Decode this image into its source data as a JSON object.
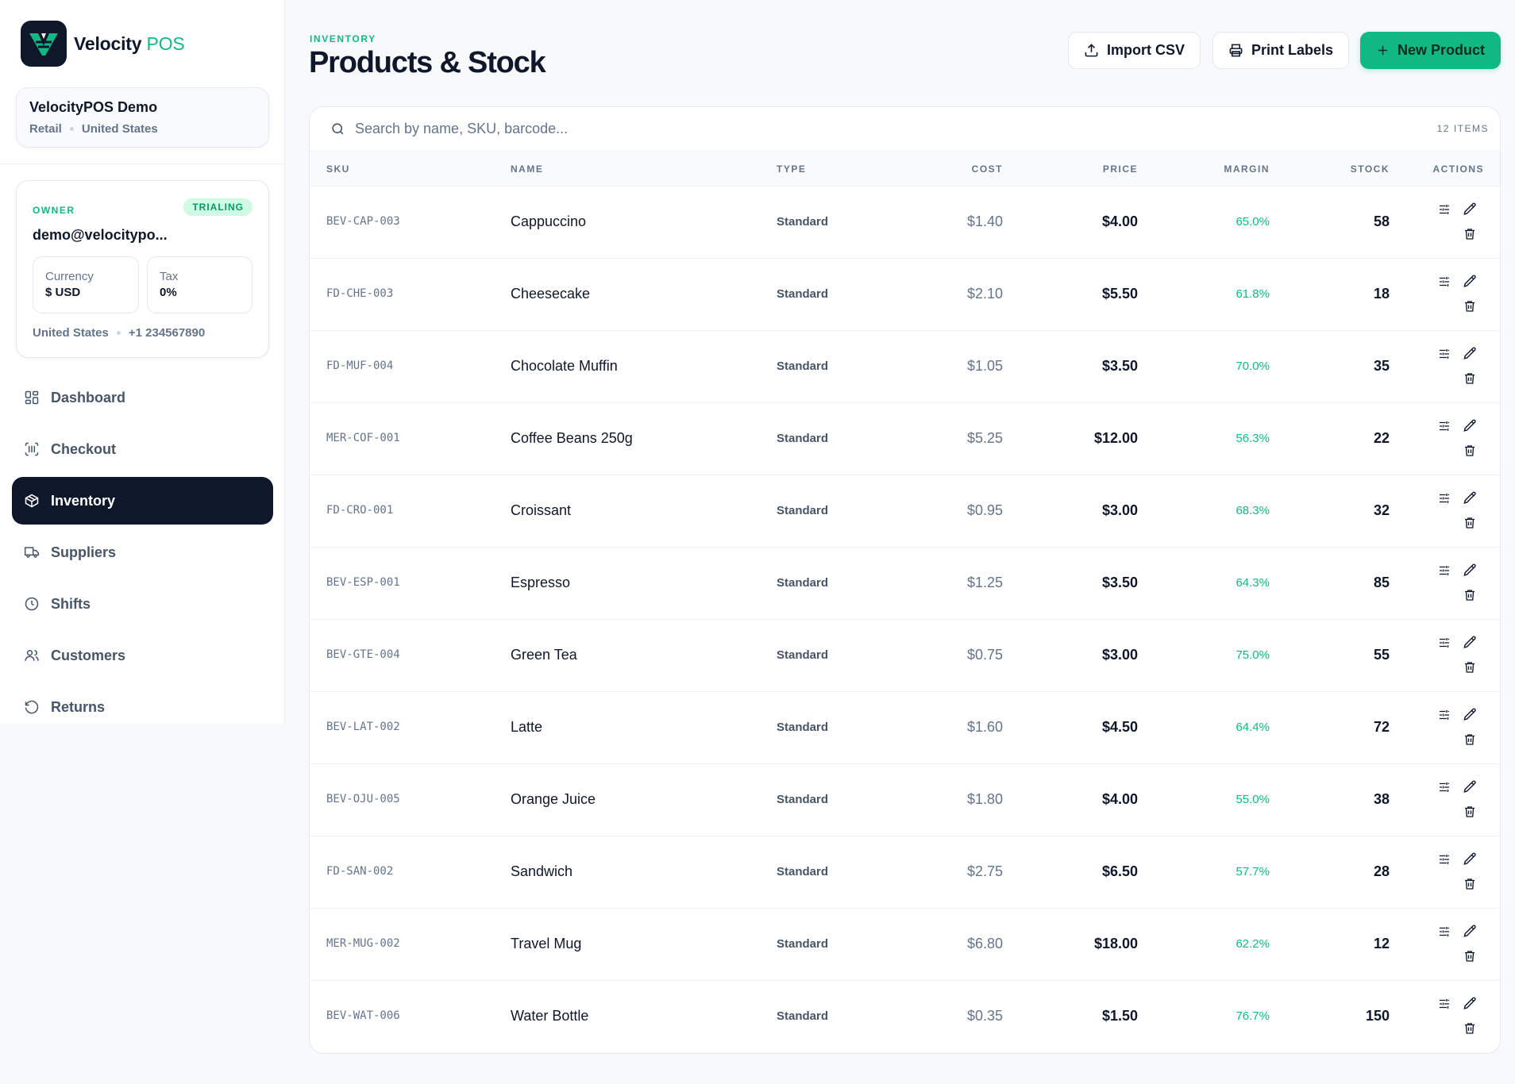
{
  "brand": {
    "name": "Velocity",
    "name_accent": "POS"
  },
  "org": {
    "name": "VelocityPOS Demo",
    "type": "Retail",
    "country": "United States"
  },
  "account": {
    "role": "OWNER",
    "status_badge": "TRIALING",
    "email": "demo@velocitypo...",
    "currency_label": "Currency",
    "currency_value": "$ USD",
    "tax_label": "Tax",
    "tax_value": "0%",
    "country": "United States",
    "phone": "+1 234567890"
  },
  "nav": {
    "items": [
      {
        "label": "Dashboard",
        "icon": "grid-icon",
        "active": false
      },
      {
        "label": "Checkout",
        "icon": "barcode-scan-icon",
        "active": false
      },
      {
        "label": "Inventory",
        "icon": "package-icon",
        "active": true
      },
      {
        "label": "Suppliers",
        "icon": "truck-icon",
        "active": false
      },
      {
        "label": "Shifts",
        "icon": "clock-icon",
        "active": false
      },
      {
        "label": "Customers",
        "icon": "users-icon",
        "active": false
      },
      {
        "label": "Returns",
        "icon": "rotate-ccw-icon",
        "active": false
      }
    ]
  },
  "header": {
    "eyebrow": "INVENTORY",
    "title": "Products & Stock",
    "import_label": "Import CSV",
    "print_label": "Print Labels",
    "new_label": "New Product"
  },
  "search": {
    "placeholder": "Search by name, SKU, barcode...",
    "value": "",
    "count_label": "12 ITEMS"
  },
  "table": {
    "columns": [
      "SKU",
      "NAME",
      "TYPE",
      "COST",
      "PRICE",
      "MARGIN",
      "STOCK",
      "ACTIONS"
    ],
    "rows": [
      {
        "sku": "BEV-CAP-003",
        "name": "Cappuccino",
        "type": "Standard",
        "cost": "$1.40",
        "price": "$4.00",
        "margin": "65.0%",
        "stock": "58"
      },
      {
        "sku": "FD-CHE-003",
        "name": "Cheesecake",
        "type": "Standard",
        "cost": "$2.10",
        "price": "$5.50",
        "margin": "61.8%",
        "stock": "18"
      },
      {
        "sku": "FD-MUF-004",
        "name": "Chocolate Muffin",
        "type": "Standard",
        "cost": "$1.05",
        "price": "$3.50",
        "margin": "70.0%",
        "stock": "35"
      },
      {
        "sku": "MER-COF-001",
        "name": "Coffee Beans 250g",
        "type": "Standard",
        "cost": "$5.25",
        "price": "$12.00",
        "margin": "56.3%",
        "stock": "22"
      },
      {
        "sku": "FD-CRO-001",
        "name": "Croissant",
        "type": "Standard",
        "cost": "$0.95",
        "price": "$3.00",
        "margin": "68.3%",
        "stock": "32"
      },
      {
        "sku": "BEV-ESP-001",
        "name": "Espresso",
        "type": "Standard",
        "cost": "$1.25",
        "price": "$3.50",
        "margin": "64.3%",
        "stock": "85"
      },
      {
        "sku": "BEV-GTE-004",
        "name": "Green Tea",
        "type": "Standard",
        "cost": "$0.75",
        "price": "$3.00",
        "margin": "75.0%",
        "stock": "55"
      },
      {
        "sku": "BEV-LAT-002",
        "name": "Latte",
        "type": "Standard",
        "cost": "$1.60",
        "price": "$4.50",
        "margin": "64.4%",
        "stock": "72"
      },
      {
        "sku": "BEV-OJU-005",
        "name": "Orange Juice",
        "type": "Standard",
        "cost": "$1.80",
        "price": "$4.00",
        "margin": "55.0%",
        "stock": "38"
      },
      {
        "sku": "FD-SAN-002",
        "name": "Sandwich",
        "type": "Standard",
        "cost": "$2.75",
        "price": "$6.50",
        "margin": "57.7%",
        "stock": "28"
      },
      {
        "sku": "MER-MUG-002",
        "name": "Travel Mug",
        "type": "Standard",
        "cost": "$6.80",
        "price": "$18.00",
        "margin": "62.2%",
        "stock": "12"
      },
      {
        "sku": "BEV-WAT-006",
        "name": "Water Bottle",
        "type": "Standard",
        "cost": "$0.35",
        "price": "$1.50",
        "margin": "76.7%",
        "stock": "150"
      }
    ]
  },
  "colors": {
    "accent": "#10b981",
    "dark": "#0f172a",
    "muted": "#64748b"
  }
}
